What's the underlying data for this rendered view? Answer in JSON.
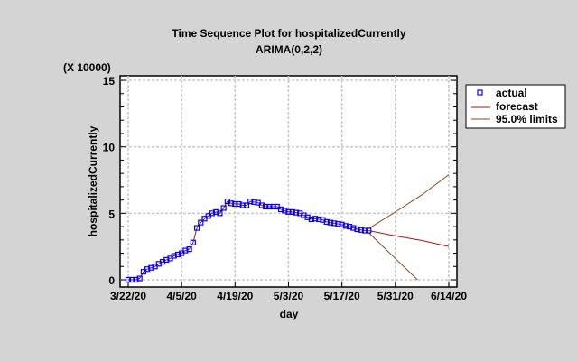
{
  "chart_data": {
    "type": "line",
    "title": "Time Sequence Plot for hospitalizedCurrently",
    "subtitle": "ARIMA(0,2,2)",
    "xlabel": "day",
    "ylabel": "hospitalizedCurrently",
    "y_multiplier_label": "(X 10000)",
    "x_tick_labels": [
      "3/22/20",
      "4/5/20",
      "4/19/20",
      "5/3/20",
      "5/17/20",
      "5/31/20",
      "6/14/20"
    ],
    "x_tick_days": [
      0,
      14,
      28,
      42,
      56,
      70,
      84
    ],
    "x_range_days": [
      -2,
      87
    ],
    "y_ticks": [
      0,
      5,
      10,
      15
    ],
    "ylim": [
      -0.5,
      15.5
    ],
    "grid": true,
    "legend_position": "right",
    "legend": [
      "actual",
      "forecast",
      "95.0% limits"
    ],
    "colors": {
      "actual": "#0000ff",
      "forecast": "#a01818",
      "limits": "#8b4513"
    },
    "series": [
      {
        "name": "actual",
        "start_day": 0,
        "values": [
          0,
          0,
          0,
          0.1,
          0.6,
          0.8,
          0.9,
          1.0,
          1.2,
          1.35,
          1.5,
          1.6,
          1.8,
          1.9,
          2.0,
          2.2,
          2.3,
          2.8,
          3.9,
          4.3,
          4.6,
          4.8,
          5.0,
          5.1,
          5.0,
          5.4,
          5.9,
          5.75,
          5.7,
          5.7,
          5.6,
          5.6,
          5.9,
          5.85,
          5.8,
          5.6,
          5.5,
          5.5,
          5.5,
          5.5,
          5.3,
          5.2,
          5.1,
          5.1,
          5.05,
          5.0,
          4.85,
          4.7,
          4.55,
          4.6,
          4.55,
          4.5,
          4.35,
          4.3,
          4.25,
          4.2,
          4.15,
          4.05,
          4.0,
          3.9,
          3.8,
          3.75,
          3.7,
          3.7
        ]
      },
      {
        "name": "forecast",
        "x_days": [
          63,
          70,
          77,
          84
        ],
        "values": [
          3.7,
          3.3,
          2.95,
          2.5
        ]
      },
      {
        "name": "upper limit",
        "x_days": [
          63,
          70,
          77,
          84
        ],
        "values": [
          3.85,
          5.1,
          6.4,
          7.9
        ]
      },
      {
        "name": "lower limit",
        "x_days": [
          63,
          70,
          75.8
        ],
        "values": [
          3.55,
          1.6,
          0
        ]
      }
    ]
  }
}
